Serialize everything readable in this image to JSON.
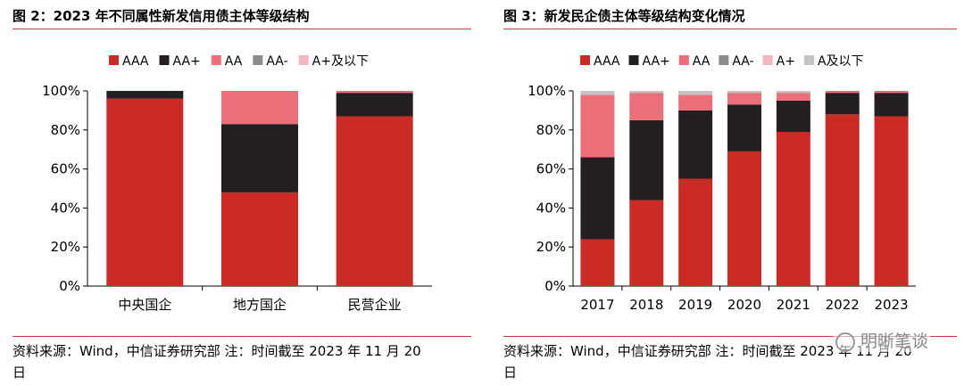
{
  "left": {
    "title": "图 2：2023 年不同属性新发信用债主体等级结构",
    "source_line1": "资料来源：Wind，中信证券研究部 注：时间截至 2023 年 11 月 20",
    "source_line2": "日"
  },
  "right": {
    "title": "图 3：新发民企债主体等级结构变化情况",
    "source_line1": "资料来源：Wind，中信证券研究部 注：时间截至 2023 年 11 月 20",
    "source_line2": "日"
  },
  "watermark": "明晰笔谈",
  "colors": {
    "AAA": "#cc2a24",
    "AA+": "#231f20",
    "AA": "#ec6e78",
    "AA-": "#8c8c8c",
    "A+": "#f3b6bc",
    "A+及以下": "#f3b6bc",
    "A及以下": "#c3c3c3",
    "rule": "#b5473f"
  },
  "chart_data": [
    {
      "type": "bar",
      "stacked": true,
      "title": "",
      "categories": [
        "中央国企",
        "地方国企",
        "民营企业"
      ],
      "series": [
        {
          "name": "AAA",
          "values": [
            96,
            48,
            87
          ]
        },
        {
          "name": "AA+",
          "values": [
            4,
            35,
            12
          ]
        },
        {
          "name": "AA",
          "values": [
            0,
            17,
            1
          ]
        },
        {
          "name": "AA-",
          "values": [
            0,
            0,
            0
          ]
        },
        {
          "name": "A+及以下",
          "values": [
            0,
            0,
            0
          ]
        }
      ],
      "yticks": [
        "0%",
        "20%",
        "40%",
        "60%",
        "80%",
        "100%"
      ],
      "ylim": [
        0,
        100
      ],
      "legend": "top",
      "grid": false
    },
    {
      "type": "bar",
      "stacked": true,
      "title": "",
      "categories": [
        "2017",
        "2018",
        "2019",
        "2020",
        "2021",
        "2022",
        "2023"
      ],
      "series": [
        {
          "name": "AAA",
          "values": [
            24,
            44,
            55,
            69,
            79,
            88,
            87
          ]
        },
        {
          "name": "AA+",
          "values": [
            42,
            41,
            35,
            24,
            16,
            11,
            12
          ]
        },
        {
          "name": "AA",
          "values": [
            32,
            14,
            8,
            6,
            4,
            1,
            1
          ]
        },
        {
          "name": "AA-",
          "values": [
            0,
            0,
            0,
            0,
            0,
            0,
            0
          ]
        },
        {
          "name": "A+",
          "values": [
            0,
            0,
            0,
            0,
            0,
            0,
            0
          ]
        },
        {
          "name": "A及以下",
          "values": [
            2,
            1,
            2,
            1,
            1,
            0,
            0
          ]
        }
      ],
      "yticks": [
        "0%",
        "20%",
        "40%",
        "60%",
        "80%",
        "100%"
      ],
      "ylim": [
        0,
        100
      ],
      "legend": "top",
      "grid": false
    }
  ]
}
